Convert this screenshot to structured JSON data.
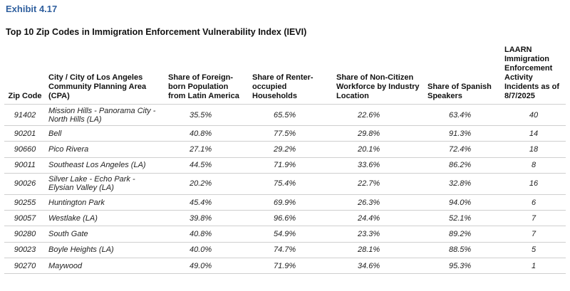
{
  "exhibit": "Exhibit 4.17",
  "title": "Top 10 Zip Codes in Immigration Enforcement Vulnerability Index (IEVI)",
  "headers": {
    "zip": "Zip Code",
    "city": "City / City of Los Angeles Community Planning Area (CPA)",
    "foreign_born": "Share of Foreign-born Population from Latin America",
    "renter": "Share of Renter-occupied Households",
    "noncitizen": "Share of Non-Citizen Workforce by Industry Location",
    "spanish": "Share of Spanish Speakers",
    "laarn": "LAARN Immigration Enforcement Activity Incidents as of 8/7/2025"
  },
  "rows": [
    {
      "zip": "91402",
      "city": "Mission Hills - Panorama City - North Hills (LA)",
      "foreign_born": "35.5%",
      "renter": "65.5%",
      "noncitizen": "22.6%",
      "spanish": "63.4%",
      "laarn": "40"
    },
    {
      "zip": "90201",
      "city": "Bell",
      "foreign_born": "40.8%",
      "renter": "77.5%",
      "noncitizen": "29.8%",
      "spanish": "91.3%",
      "laarn": "14"
    },
    {
      "zip": "90660",
      "city": "Pico Rivera",
      "foreign_born": "27.1%",
      "renter": "29.2%",
      "noncitizen": "20.1%",
      "spanish": "72.4%",
      "laarn": "18"
    },
    {
      "zip": "90011",
      "city": "Southeast Los Angeles (LA)",
      "foreign_born": "44.5%",
      "renter": "71.9%",
      "noncitizen": "33.6%",
      "spanish": "86.2%",
      "laarn": "8"
    },
    {
      "zip": "90026",
      "city": "Silver Lake - Echo Park - Elysian Valley (LA)",
      "foreign_born": "20.2%",
      "renter": "75.4%",
      "noncitizen": "22.7%",
      "spanish": "32.8%",
      "laarn": "16"
    },
    {
      "zip": "90255",
      "city": "Huntington Park",
      "foreign_born": "45.4%",
      "renter": "69.9%",
      "noncitizen": "26.3%",
      "spanish": "94.0%",
      "laarn": "6"
    },
    {
      "zip": "90057",
      "city": "Westlake (LA)",
      "foreign_born": "39.8%",
      "renter": "96.6%",
      "noncitizen": "24.4%",
      "spanish": "52.1%",
      "laarn": "7"
    },
    {
      "zip": "90280",
      "city": "South Gate",
      "foreign_born": "40.8%",
      "renter": "54.9%",
      "noncitizen": "23.3%",
      "spanish": "89.2%",
      "laarn": "7"
    },
    {
      "zip": "90023",
      "city": "Boyle Heights (LA)",
      "foreign_born": "40.0%",
      "renter": "74.7%",
      "noncitizen": "28.1%",
      "spanish": "88.5%",
      "laarn": "5"
    },
    {
      "zip": "90270",
      "city": "Maywood",
      "foreign_born": "49.0%",
      "renter": "71.9%",
      "noncitizen": "34.6%",
      "spanish": "95.3%",
      "laarn": "1"
    }
  ]
}
